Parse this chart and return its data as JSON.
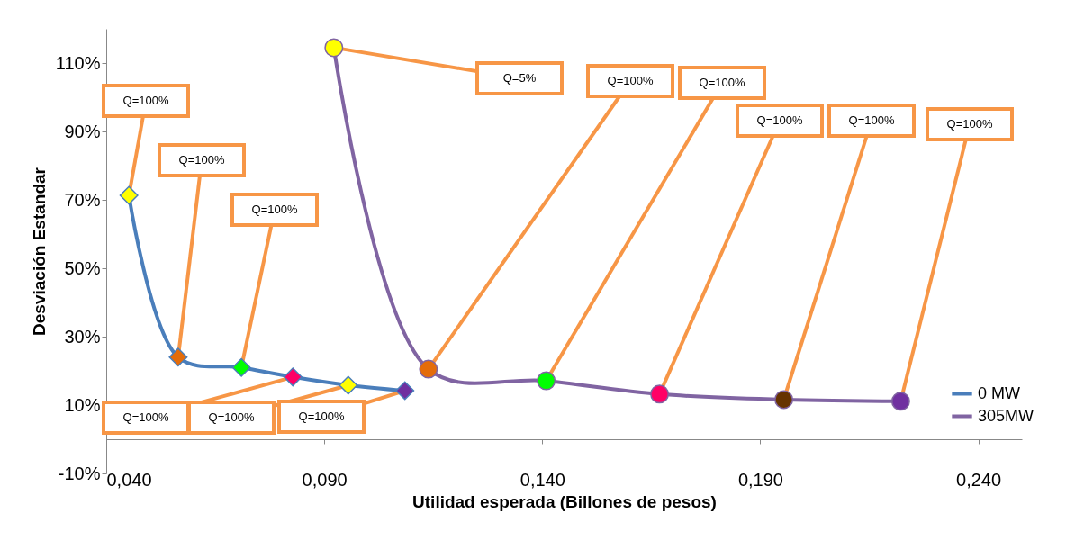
{
  "chart_data": {
    "type": "line",
    "xlabel": "Utilidad esperada (Billones de pesos)",
    "ylabel": "Desviación Estandar",
    "xlim": [
      0.04,
      0.25
    ],
    "ylim": [
      -10,
      120
    ],
    "xticks": [
      {
        "value": 0.04,
        "label": "0,040"
      },
      {
        "value": 0.09,
        "label": "0,090"
      },
      {
        "value": 0.14,
        "label": "0,140"
      },
      {
        "value": 0.19,
        "label": "0,190"
      },
      {
        "value": 0.24,
        "label": "0,240"
      }
    ],
    "yticks": [
      {
        "value": -10,
        "label": "-10%"
      },
      {
        "value": 10,
        "label": "10%"
      },
      {
        "value": 30,
        "label": "30%"
      },
      {
        "value": 50,
        "label": "50%"
      },
      {
        "value": 70,
        "label": "70%"
      },
      {
        "value": 90,
        "label": "90%"
      },
      {
        "value": 110,
        "label": "110%"
      }
    ],
    "legend": "bottom right",
    "series": [
      {
        "name": "0 MW",
        "color": "#4a7ebb",
        "marker": "diamond",
        "x": [
          0.0452,
          0.0565,
          0.071,
          0.0828,
          0.0955,
          0.1085
        ],
        "values": [
          71.3,
          24,
          21,
          18.2,
          15.8,
          14.2
        ],
        "colors": [
          "#ffff00",
          "#e46c0a",
          "#00ff00",
          "#ff0066",
          "#ffff00",
          "#7030a0"
        ]
      },
      {
        "name": "305MW",
        "color": "#8064a2",
        "marker": "circle",
        "x": [
          0.0922,
          0.1139,
          0.1409,
          0.1669,
          0.1954,
          0.2222
        ],
        "values": [
          114.5,
          20.5,
          17.1,
          13.2,
          11.6,
          11.1
        ],
        "colors": [
          "#ffff00",
          "#e46c0a",
          "#00ff00",
          "#ff0066",
          "#663300",
          "#7030a0"
        ]
      }
    ],
    "annotations": [
      {
        "text": "Q=100%",
        "x": 0.0452,
        "y": 71.3
      },
      {
        "text": "Q=100%",
        "x": 0.0565,
        "y": 24
      },
      {
        "text": "Q=100%",
        "x": 0.071,
        "y": 21
      },
      {
        "text": "Q=100%",
        "x": 0.0828,
        "y": 18.2
      },
      {
        "text": "Q=100%",
        "x": 0.0955,
        "y": 15.8
      },
      {
        "text": "Q=100%",
        "x": 0.1085,
        "y": 14.2
      },
      {
        "text": "Q=5%",
        "x": 0.0922,
        "y": 114.5
      },
      {
        "text": "Q=100%",
        "x": 0.1139,
        "y": 20.5
      },
      {
        "text": "Q=100%",
        "x": 0.1409,
        "y": 17.1
      },
      {
        "text": "Q=100%",
        "x": 0.1669,
        "y": 13.2
      },
      {
        "text": "Q=100%",
        "x": 0.1954,
        "y": 11.6
      },
      {
        "text": "Q=100%",
        "x": 0.2222,
        "y": 11.1
      }
    ]
  }
}
